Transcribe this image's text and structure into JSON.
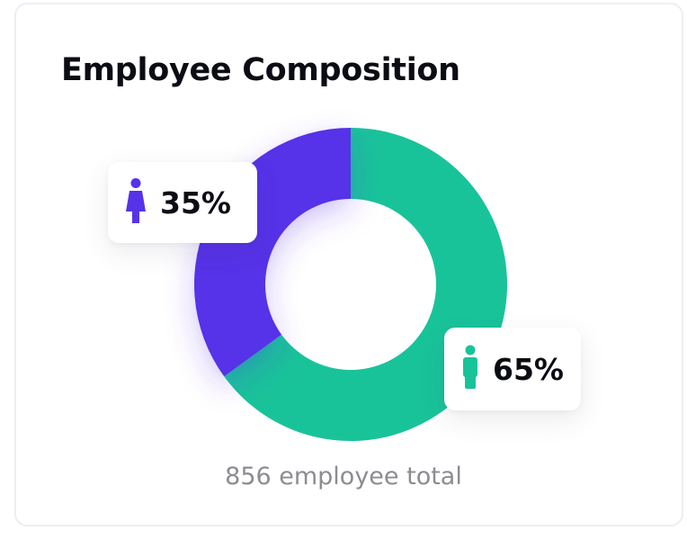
{
  "card": {
    "title": "Employee Composition",
    "total_text": "856 employee total"
  },
  "labels": {
    "female": {
      "icon": "female-person-icon",
      "text": "35%"
    },
    "male": {
      "icon": "male-person-icon",
      "text": "65%"
    }
  },
  "colors": {
    "female": "#5632e8",
    "male": "#19c39a",
    "title": "#0c0c14",
    "muted": "#8c8c92"
  },
  "chart_data": {
    "type": "pie",
    "categories": [
      "Female",
      "Male"
    ],
    "values": [
      35,
      65
    ],
    "labels": [
      "35%",
      "65%"
    ],
    "total": 856,
    "title": "Employee Composition"
  }
}
